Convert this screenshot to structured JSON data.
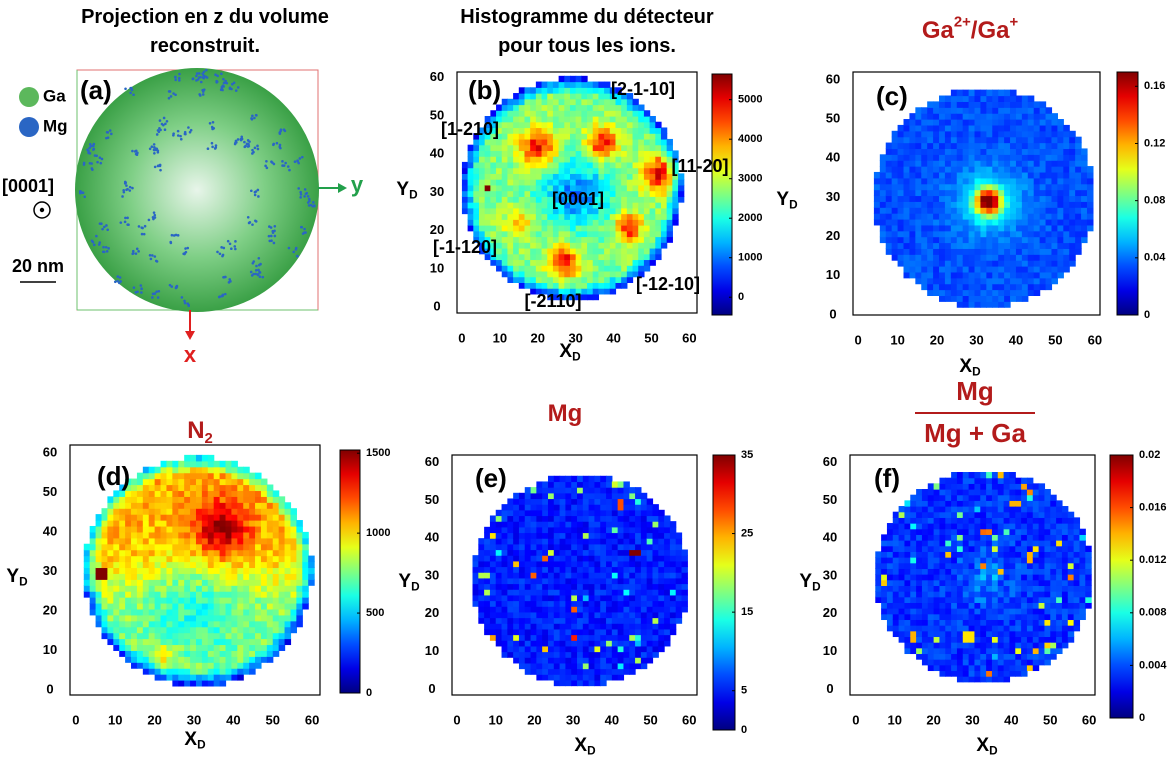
{
  "chart_data": [
    {
      "type": "projection",
      "panel_label": "(a)",
      "title": [
        [
          {
            "text": "Projection en z du volume"
          }
        ],
        [
          {
            "text": "reconstruit."
          }
        ]
      ],
      "legend": [
        {
          "name": "Ga",
          "color": "#5cb85c"
        },
        {
          "name": "Mg",
          "color": "#2a66c4"
        }
      ],
      "direction": "[0001]",
      "scale_bar": "20 nm",
      "axes": [
        {
          "name": "y",
          "color": "#22a04b"
        },
        {
          "name": "x",
          "color": "#e02020"
        }
      ]
    },
    {
      "type": "heatmap",
      "panel_label": "(b)",
      "title": [
        [
          {
            "text": "Histogramme du détecteur"
          }
        ],
        [
          {
            "text": "pour tous les ions."
          }
        ]
      ],
      "xlabel": [
        {
          "text": "X"
        },
        {
          "text": "D",
          "sub": true
        }
      ],
      "ylabel": [
        {
          "text": "Y"
        },
        {
          "text": "D",
          "sub": true
        }
      ],
      "xlim": [
        -1.3,
        62
      ],
      "ylim": [
        -1.5,
        61.5
      ],
      "xticks": [
        0,
        10,
        20,
        30,
        40,
        50,
        60
      ],
      "yticks": [
        0,
        10,
        20,
        30,
        40,
        50,
        60
      ],
      "colormap": "jet",
      "clim": [
        -450,
        5650
      ],
      "cticks": [
        0,
        1000,
        2000,
        3000,
        4000,
        5000
      ],
      "annotations": [
        "[2-1-10]",
        "[1-210]",
        "[11-20]",
        "[0001]",
        "[-1-120]",
        "[-12-10]",
        "[-2110]"
      ]
    },
    {
      "type": "heatmap",
      "panel_label": "(c)",
      "title": [
        [
          {
            "text": "Ga"
          },
          {
            "text": "2+",
            "sup": true
          },
          {
            "text": "/Ga"
          },
          {
            "text": "+",
            "sup": true
          }
        ]
      ],
      "xlabel": [
        {
          "text": "X"
        },
        {
          "text": "D",
          "sub": true
        }
      ],
      "ylabel": [
        {
          "text": "Y"
        },
        {
          "text": "D",
          "sub": true
        }
      ],
      "xlim": [
        -1.3,
        61.3
      ],
      "ylim": [
        0,
        62
      ],
      "xticks": [
        0,
        10,
        20,
        30,
        40,
        50,
        60
      ],
      "yticks": [
        0,
        10,
        20,
        30,
        40,
        50,
        60
      ],
      "colormap": "jet",
      "clim": [
        0,
        0.17
      ],
      "cticks": [
        0,
        0.04,
        0.08,
        0.12,
        0.16
      ]
    },
    {
      "type": "heatmap",
      "panel_label": "(d)",
      "title": [
        [
          {
            "text": "N"
          },
          {
            "text": "2",
            "sub": true
          }
        ]
      ],
      "xlabel": [
        {
          "text": "X"
        },
        {
          "text": "D",
          "sub": true
        }
      ],
      "ylabel": [
        {
          "text": "Y"
        },
        {
          "text": "D",
          "sub": true
        }
      ],
      "xlim": [
        -1.5,
        62
      ],
      "ylim": [
        -1.3,
        62
      ],
      "xticks": [
        0,
        10,
        20,
        30,
        40,
        50,
        60
      ],
      "yticks": [
        0,
        10,
        20,
        30,
        40,
        50,
        60
      ],
      "colormap": "jet",
      "clim": [
        0,
        1520
      ],
      "cticks": [
        0,
        500,
        1000,
        1500
      ]
    },
    {
      "type": "heatmap",
      "panel_label": "(e)",
      "title": [
        [
          {
            "text": "Mg"
          }
        ]
      ],
      "xlabel": [
        {
          "text": "X"
        },
        {
          "text": "D",
          "sub": true
        }
      ],
      "ylabel": [
        {
          "text": "Y"
        },
        {
          "text": "D",
          "sub": true
        }
      ],
      "xlim": [
        -1.3,
        62
      ],
      "ylim": [
        -1.5,
        62
      ],
      "xticks": [
        0,
        10,
        20,
        30,
        40,
        50,
        60
      ],
      "yticks": [
        0,
        10,
        20,
        30,
        40,
        50,
        60
      ],
      "colormap": "jet",
      "clim": [
        0,
        35
      ],
      "cticks": [
        0,
        5,
        15,
        25,
        35
      ]
    },
    {
      "type": "heatmap",
      "panel_label": "(f)",
      "title": {
        "numerator": "Mg",
        "denominator": "Mg + Ga"
      },
      "xlabel": [
        {
          "text": "X"
        },
        {
          "text": "D",
          "sub": true
        }
      ],
      "ylabel": [
        {
          "text": "Y"
        },
        {
          "text": "D",
          "sub": true
        }
      ],
      "xlim": [
        -1.5,
        61.5
      ],
      "ylim": [
        -1.5,
        62
      ],
      "xticks": [
        0,
        10,
        20,
        30,
        40,
        50,
        60
      ],
      "yticks": [
        0,
        10,
        20,
        30,
        40,
        50,
        60
      ],
      "colormap": "jet",
      "clim": [
        0,
        0.02
      ],
      "cticks": [
        0,
        0.004,
        0.008,
        0.012,
        0.016,
        0.02
      ]
    }
  ]
}
